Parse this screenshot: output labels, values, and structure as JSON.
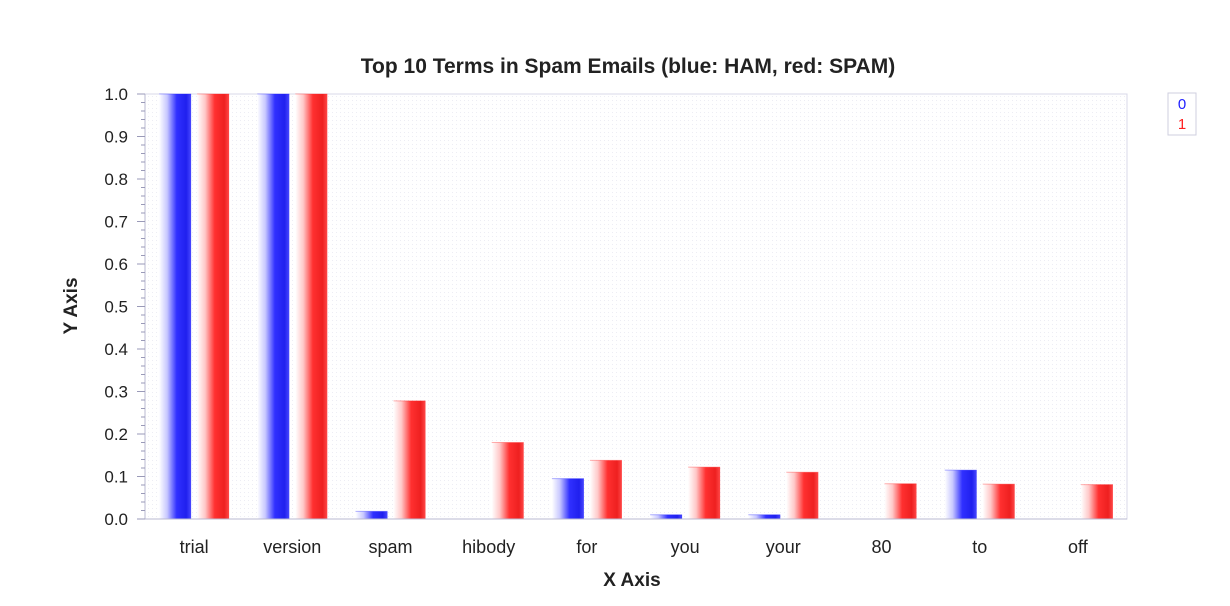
{
  "chart_data": {
    "type": "bar",
    "title": "Top 10 Terms in Spam Emails (blue: HAM, red: SPAM)",
    "xlabel": "X Axis",
    "ylabel": "Y Axis",
    "ylim": [
      0,
      1.0
    ],
    "yticks": [
      "0.0",
      "0.1",
      "0.2",
      "0.3",
      "0.4",
      "0.5",
      "0.6",
      "0.7",
      "0.8",
      "0.9",
      "1.0"
    ],
    "grid": false,
    "legend_position": "top-right",
    "categories": [
      "trial",
      "version",
      "spam",
      "hibody",
      "for",
      "you",
      "your",
      "80",
      "to",
      "off"
    ],
    "series": [
      {
        "name": "0",
        "color": "#2020ff",
        "values": [
          1.0,
          1.0,
          0.018,
          0.0,
          0.095,
          0.01,
          0.01,
          0.0,
          0.115,
          0.0
        ]
      },
      {
        "name": "1",
        "color": "#ff2020",
        "values": [
          1.0,
          1.0,
          0.278,
          0.18,
          0.138,
          0.122,
          0.11,
          0.083,
          0.082,
          0.081
        ]
      }
    ]
  }
}
